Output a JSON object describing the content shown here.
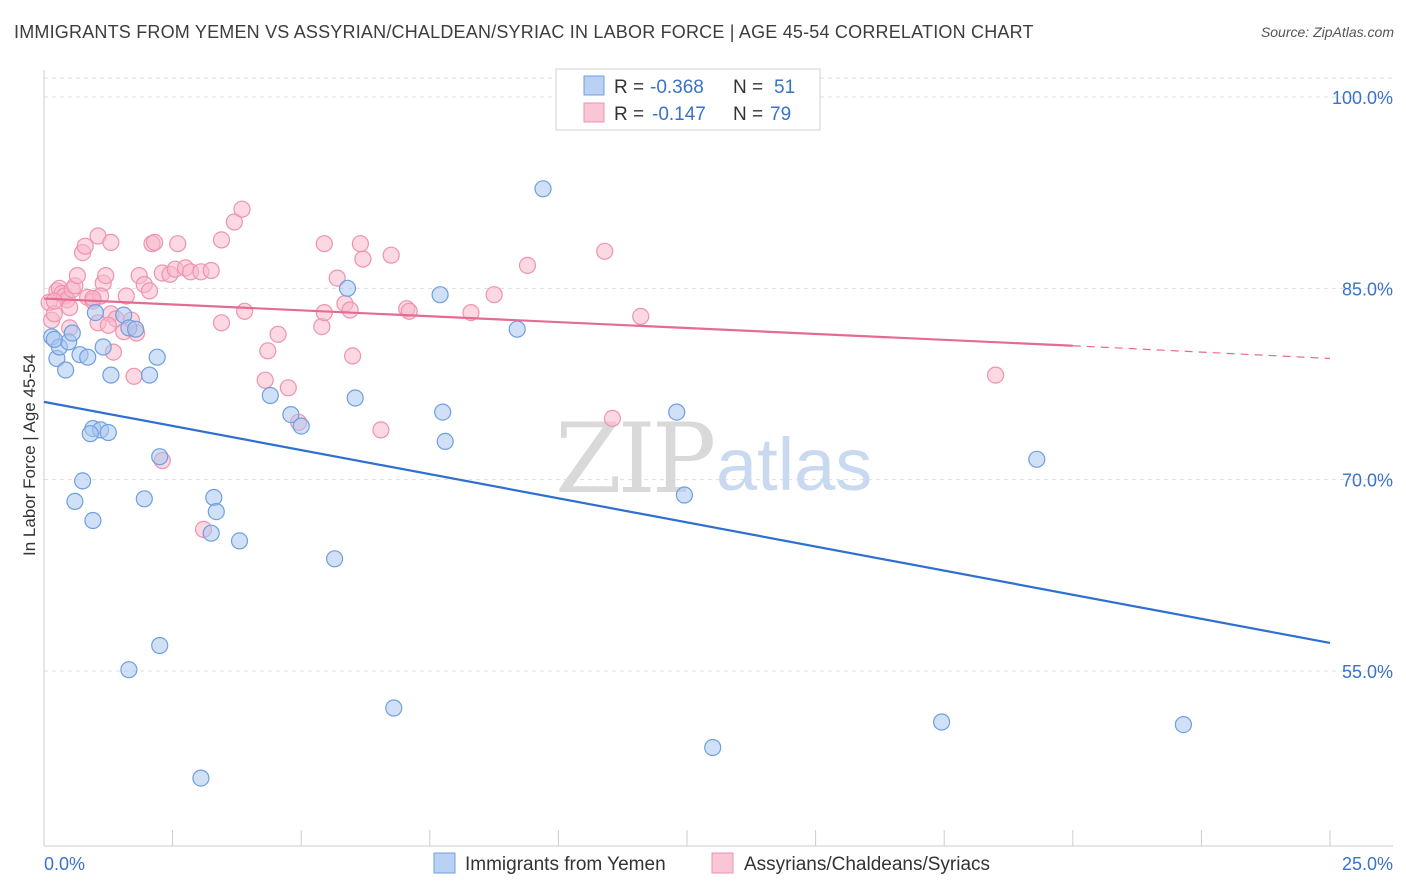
{
  "title": "IMMIGRANTS FROM YEMEN VS ASSYRIAN/CHALDEAN/SYRIAC IN LABOR FORCE | AGE 45-54 CORRELATION CHART",
  "source": "Source: ZipAtlas.com",
  "watermark": {
    "zip": "ZIP",
    "atlas": "atlas"
  },
  "legend": {
    "r_label": "R =",
    "n_label": "N =",
    "series": [
      {
        "r": "-0.368",
        "n": "51"
      },
      {
        "r": "-0.147",
        "n": "79"
      }
    ]
  },
  "colors": {
    "blue_fill": "#a9c6ef",
    "blue_stroke": "#6f9fe0",
    "blue_line": "#2f6fd0",
    "pink_fill": "#f7b8cb",
    "pink_stroke": "#ee93b0",
    "pink_line": "#e46b94",
    "axis_label": "#3a72c9",
    "grid": "#dddddd"
  },
  "chart_data": {
    "type": "scatter",
    "title": "IMMIGRANTS FROM YEMEN VS ASSYRIAN/CHALDEAN/SYRIAC IN LABOR FORCE | AGE 45-54 CORRELATION CHART",
    "xlabel": "",
    "ylabel": "In Labor Force | Age 45-54",
    "xlim": [
      0,
      25
    ],
    "ylim": [
      40,
      102.5
    ],
    "x_tick_labels": [
      "0.0%",
      "25.0%"
    ],
    "y_ticks": [
      100,
      85,
      70,
      55
    ],
    "y_tick_labels": [
      "100.0%",
      "85.0%",
      "70.0%",
      "55.0%"
    ],
    "series": [
      {
        "name": "Immigrants from Yemen",
        "r": -0.368,
        "n": 51,
        "trend": {
          "x": [
            0,
            25
          ],
          "y": [
            76.1,
            57.2
          ],
          "dashed_from": null
        },
        "points": [
          [
            0.15,
            81.2
          ],
          [
            0.25,
            79.5
          ],
          [
            0.3,
            80.4
          ],
          [
            0.42,
            78.6
          ],
          [
            0.48,
            80.8
          ],
          [
            0.55,
            81.5
          ],
          [
            0.7,
            79.8
          ],
          [
            0.85,
            79.6
          ],
          [
            1.0,
            83.1
          ],
          [
            1.15,
            80.4
          ],
          [
            1.3,
            78.2
          ],
          [
            1.55,
            82.9
          ],
          [
            1.65,
            81.9
          ],
          [
            1.78,
            81.8
          ],
          [
            2.2,
            79.6
          ],
          [
            2.25,
            71.8
          ],
          [
            0.95,
            74.0
          ],
          [
            1.1,
            73.9
          ],
          [
            1.25,
            73.7
          ],
          [
            0.9,
            73.6
          ],
          [
            0.75,
            69.9
          ],
          [
            0.6,
            68.3
          ],
          [
            0.95,
            66.8
          ],
          [
            1.95,
            68.5
          ],
          [
            3.3,
            68.6
          ],
          [
            3.35,
            67.5
          ],
          [
            3.25,
            65.8
          ],
          [
            3.8,
            65.2
          ],
          [
            4.4,
            76.6
          ],
          [
            4.8,
            75.1
          ],
          [
            5.0,
            74.2
          ],
          [
            6.05,
            76.4
          ],
          [
            5.9,
            85.0
          ],
          [
            7.7,
            84.5
          ],
          [
            7.75,
            75.3
          ],
          [
            7.8,
            73.0
          ],
          [
            9.2,
            81.8
          ],
          [
            9.7,
            92.8
          ],
          [
            12.3,
            75.3
          ],
          [
            12.45,
            68.8
          ],
          [
            5.65,
            63.8
          ],
          [
            2.25,
            57.0
          ],
          [
            1.65,
            55.1
          ],
          [
            3.05,
            46.6
          ],
          [
            6.8,
            52.1
          ],
          [
            13.0,
            49.0
          ],
          [
            17.45,
            51.0
          ],
          [
            22.15,
            50.8
          ],
          [
            19.3,
            71.6
          ],
          [
            0.2,
            81.0
          ],
          [
            2.05,
            78.2
          ]
        ]
      },
      {
        "name": "Assyrians/Chaldeans/Syriacs",
        "r": -0.147,
        "n": 79,
        "trend": {
          "x": [
            0,
            20
          ],
          "y": [
            84.2,
            80.5
          ],
          "dashed_from": 20,
          "dashed_to": [
            25,
            79.5
          ]
        },
        "points": [
          [
            0.1,
            83.9
          ],
          [
            0.15,
            82.5
          ],
          [
            0.2,
            83.0
          ],
          [
            0.25,
            84.8
          ],
          [
            0.3,
            85.0
          ],
          [
            0.35,
            84.6
          ],
          [
            0.4,
            84.4
          ],
          [
            0.45,
            84.1
          ],
          [
            0.5,
            83.5
          ],
          [
            0.55,
            84.9
          ],
          [
            0.6,
            85.2
          ],
          [
            0.65,
            86.0
          ],
          [
            0.75,
            87.8
          ],
          [
            0.85,
            84.3
          ],
          [
            0.95,
            84.0
          ],
          [
            1.05,
            82.3
          ],
          [
            1.15,
            85.4
          ],
          [
            1.2,
            86.0
          ],
          [
            1.3,
            83.0
          ],
          [
            1.4,
            82.6
          ],
          [
            1.55,
            81.6
          ],
          [
            1.6,
            84.4
          ],
          [
            1.7,
            82.5
          ],
          [
            1.8,
            81.5
          ],
          [
            1.85,
            86.0
          ],
          [
            1.95,
            85.3
          ],
          [
            2.05,
            84.8
          ],
          [
            2.1,
            88.5
          ],
          [
            2.15,
            88.6
          ],
          [
            2.3,
            86.2
          ],
          [
            2.45,
            86.1
          ],
          [
            2.55,
            86.5
          ],
          [
            2.6,
            88.5
          ],
          [
            2.75,
            86.6
          ],
          [
            2.85,
            86.3
          ],
          [
            3.05,
            86.3
          ],
          [
            3.25,
            86.4
          ],
          [
            3.45,
            88.8
          ],
          [
            3.7,
            90.2
          ],
          [
            3.85,
            91.2
          ],
          [
            1.05,
            89.1
          ],
          [
            1.3,
            88.6
          ],
          [
            0.8,
            88.3
          ],
          [
            1.1,
            84.4
          ],
          [
            1.25,
            82.1
          ],
          [
            1.35,
            80.0
          ],
          [
            1.75,
            78.1
          ],
          [
            2.3,
            71.5
          ],
          [
            3.1,
            66.1
          ],
          [
            3.45,
            82.3
          ],
          [
            3.9,
            83.2
          ],
          [
            4.3,
            77.8
          ],
          [
            4.35,
            80.1
          ],
          [
            4.55,
            81.4
          ],
          [
            4.75,
            77.2
          ],
          [
            4.95,
            74.5
          ],
          [
            5.45,
            88.5
          ],
          [
            5.4,
            82.0
          ],
          [
            5.45,
            83.1
          ],
          [
            5.7,
            85.8
          ],
          [
            5.85,
            83.8
          ],
          [
            5.95,
            83.3
          ],
          [
            6.0,
            79.7
          ],
          [
            6.2,
            87.3
          ],
          [
            6.15,
            88.5
          ],
          [
            6.55,
            73.9
          ],
          [
            6.75,
            87.6
          ],
          [
            7.05,
            83.4
          ],
          [
            7.1,
            83.2
          ],
          [
            8.3,
            83.1
          ],
          [
            8.75,
            84.5
          ],
          [
            9.4,
            86.8
          ],
          [
            10.9,
            87.9
          ],
          [
            11.05,
            74.8
          ],
          [
            11.6,
            82.8
          ],
          [
            18.5,
            78.2
          ],
          [
            0.2,
            84.0
          ],
          [
            0.5,
            81.9
          ],
          [
            0.95,
            84.2
          ]
        ]
      }
    ]
  },
  "bottom_legend": [
    "Immigrants from Yemen",
    "Assyrians/Chaldeans/Syriacs"
  ]
}
